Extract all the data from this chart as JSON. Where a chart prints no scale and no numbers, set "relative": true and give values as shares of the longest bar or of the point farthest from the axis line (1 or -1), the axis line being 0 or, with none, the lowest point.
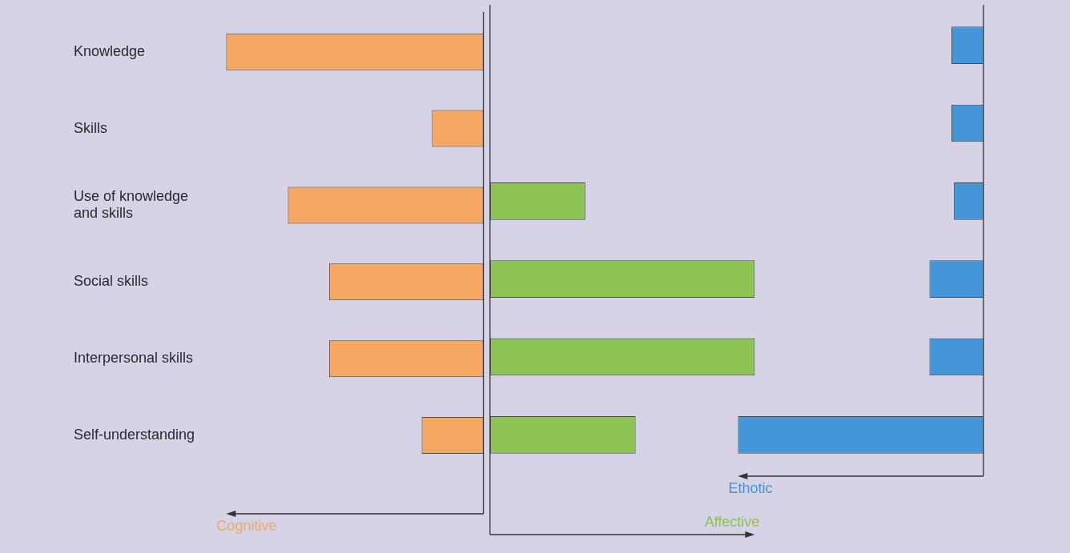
{
  "chart_data": [
    {
      "type": "bar",
      "orientation": "horizontal",
      "relative": true,
      "categories": [
        "Knowledge",
        "Skills",
        "Use of knowledge and skills",
        "Social skills",
        "Interpersonal skills",
        "Self-understanding"
      ],
      "series": [
        {
          "name": "Cognitive",
          "color": "#f4a862",
          "values": [
            -1,
            -0.2,
            -0.76,
            -0.6,
            -0.6,
            -0.24
          ]
        }
      ]
    },
    {
      "type": "bar",
      "orientation": "horizontal",
      "relative": true,
      "categories": [
        null,
        null,
        null,
        null,
        null,
        null
      ],
      "series": [
        {
          "name": "Affective",
          "color": "#8dc554",
          "values": [
            null,
            null,
            0.36,
            1,
            1,
            0.55
          ]
        }
      ]
    },
    {
      "type": "bar",
      "orientation": "horizontal",
      "relative": true,
      "categories": [
        null,
        null,
        null,
        null,
        null,
        null
      ],
      "series": [
        {
          "name": "Ethotic",
          "color": "#4596d8",
          "values": [
            -0.13,
            -0.13,
            -0.12,
            -0.22,
            -0.22,
            -1
          ]
        }
      ]
    }
  ]
}
